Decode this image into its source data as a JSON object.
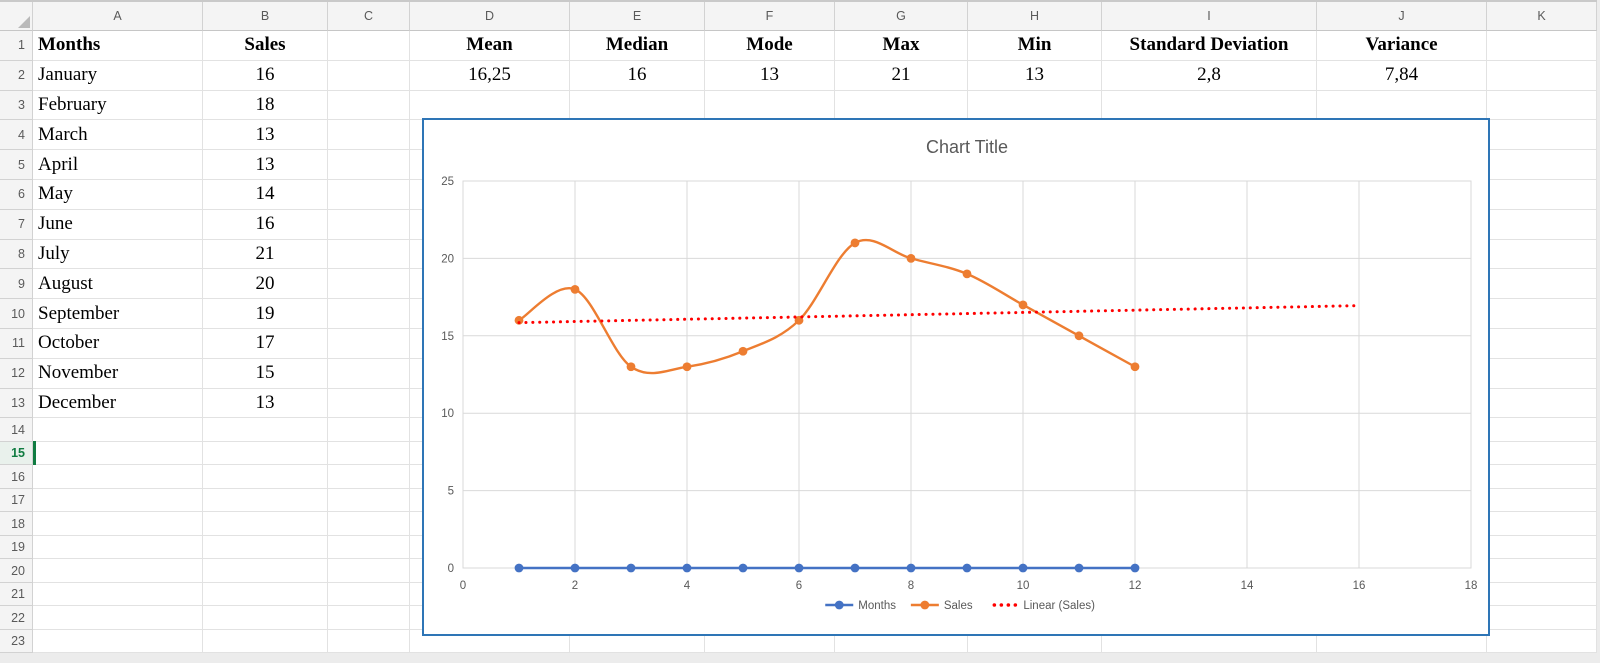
{
  "app": {
    "name": "spreadsheet"
  },
  "colors": {
    "chart_border": "#2e75b6",
    "series_months": "#4472C4",
    "series_sales": "#ED7D31",
    "trendline": "#FF0000",
    "chart_text": "#595959",
    "chart_gridline": "#D9D9D9",
    "axis_line": "#BFBFBF",
    "active_green": "#107c41",
    "sheet_gridline": "#e2e2e2",
    "header_bg": "#f4f4f4"
  },
  "sheet": {
    "column_headers": [
      "A",
      "B",
      "C",
      "D",
      "E",
      "F",
      "G",
      "H",
      "I",
      "J",
      "K"
    ],
    "row_numbers": [
      1,
      2,
      3,
      4,
      5,
      6,
      7,
      8,
      9,
      10,
      11,
      12,
      13,
      14,
      15,
      16,
      17,
      18,
      19,
      20,
      21,
      22,
      23
    ],
    "active_row": 15,
    "active_cell": "A15",
    "table": {
      "months_header": "Months",
      "sales_header": "Sales",
      "rows": [
        [
          "January",
          "16"
        ],
        [
          "February",
          "18"
        ],
        [
          "March",
          "13"
        ],
        [
          "April",
          "13"
        ],
        [
          "May",
          "14"
        ],
        [
          "June",
          "16"
        ],
        [
          "July",
          "21"
        ],
        [
          "August",
          "20"
        ],
        [
          "September",
          "19"
        ],
        [
          "October",
          "17"
        ],
        [
          "November",
          "15"
        ],
        [
          "December",
          "13"
        ]
      ]
    },
    "stats": {
      "headers": [
        "Mean",
        "Median",
        "Mode",
        "Max",
        "Min",
        "Standard Deviation",
        "Variance"
      ],
      "values": [
        "16,25",
        "16",
        "13",
        "21",
        "13",
        "2,8",
        "7,84"
      ]
    }
  },
  "chart_data": {
    "type": "line",
    "title": "Chart Title",
    "x": [
      1,
      2,
      3,
      4,
      5,
      6,
      7,
      8,
      9,
      10,
      11,
      12
    ],
    "series": [
      {
        "name": "Months",
        "color": "#4472C4",
        "values": [
          0,
          0,
          0,
          0,
          0,
          0,
          0,
          0,
          0,
          0,
          0,
          0
        ],
        "smooth": false,
        "marker": "circle"
      },
      {
        "name": "Sales",
        "color": "#ED7D31",
        "values": [
          16,
          18,
          13,
          13,
          14,
          16,
          21,
          20,
          19,
          17,
          15,
          13
        ],
        "smooth": true,
        "marker": "circle"
      }
    ],
    "trendline": {
      "name": "Linear (Sales)",
      "color": "#FF0000",
      "style": "dotted",
      "x_start": 1,
      "y_start": 15.85,
      "x_end": 16,
      "y_end": 16.95
    },
    "xlim": [
      0,
      18
    ],
    "ylim": [
      0,
      25
    ],
    "x_ticks": [
      0,
      2,
      4,
      6,
      8,
      10,
      12,
      14,
      16,
      18
    ],
    "y_ticks": [
      0,
      5,
      10,
      15,
      20,
      25
    ],
    "grid": true,
    "legend": [
      "Months",
      "Sales",
      "Linear (Sales)"
    ],
    "legend_position": "bottom"
  }
}
